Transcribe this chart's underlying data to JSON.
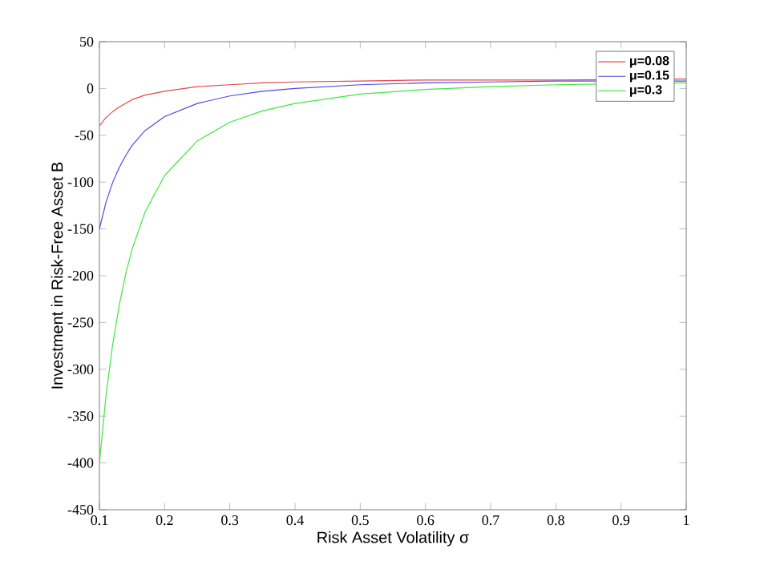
{
  "chart_data": {
    "type": "line",
    "xlabel": "Risk Asset Volatility σ",
    "ylabel": "Investment in Risk-Free Asset B",
    "x": [
      0.1,
      0.11,
      0.12,
      0.13,
      0.14,
      0.15,
      0.17,
      0.2,
      0.25,
      0.3,
      0.35,
      0.4,
      0.5,
      0.6,
      0.7,
      0.8,
      1.0
    ],
    "series": [
      {
        "name": "μ=0.08",
        "color": "#e8464a",
        "values": [
          -40,
          -31,
          -25,
          -20,
          -16,
          -12,
          -7,
          -3,
          2,
          4,
          6,
          7,
          8,
          9,
          9,
          9,
          10
        ]
      },
      {
        "name": "μ=0.15",
        "color": "#4a4ae8",
        "values": [
          -150,
          -122,
          -101,
          -85,
          -72,
          -61,
          -45,
          -30,
          -16,
          -8,
          -3,
          0,
          4,
          6,
          7,
          8,
          8
        ]
      },
      {
        "name": "μ=0.3",
        "color": "#3ee83e",
        "values": [
          -400,
          -329,
          -275,
          -233,
          -199,
          -172,
          -132,
          -93,
          -56,
          -36,
          -24,
          -16,
          -6,
          -1,
          2,
          4,
          6
        ]
      }
    ],
    "xlim": [
      0.1,
      1
    ],
    "ylim": [
      -450,
      50
    ],
    "xticks": [
      0.1,
      0.2,
      0.3,
      0.4,
      0.5,
      0.6,
      0.7,
      0.8,
      0.9,
      1
    ],
    "yticks": [
      -450,
      -400,
      -350,
      -300,
      -250,
      -200,
      -150,
      -100,
      -50,
      0,
      50
    ],
    "grid": false,
    "legend": "top right",
    "marker": "none",
    "line_style": "solid"
  }
}
